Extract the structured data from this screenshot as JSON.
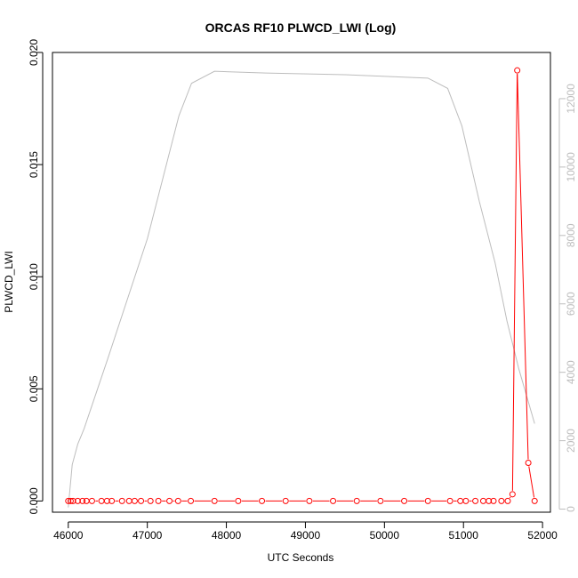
{
  "chart_data": {
    "type": "line",
    "title": "ORCAS RF10 PLWCD_LWI (Log)",
    "xlabel": "UTC Seconds",
    "ylabel": "PLWCD_LWI",
    "y2label": "",
    "xlim": [
      45800,
      52100
    ],
    "ylim": [
      -0.0005,
      0.02
    ],
    "y2lim": [
      -90,
      13350
    ],
    "x_ticks": [
      {
        "value": 46000,
        "label": "46000"
      },
      {
        "value": 47000,
        "label": "47000"
      },
      {
        "value": 48000,
        "label": "48000"
      },
      {
        "value": 49000,
        "label": "49000"
      },
      {
        "value": 50000,
        "label": "50000"
      },
      {
        "value": 51000,
        "label": "51000"
      },
      {
        "value": 52000,
        "label": "52000"
      }
    ],
    "y_ticks": [
      {
        "value": 0.0,
        "label": "0.000"
      },
      {
        "value": 0.005,
        "label": "0.005"
      },
      {
        "value": 0.01,
        "label": "0.010"
      },
      {
        "value": 0.015,
        "label": "0.015"
      },
      {
        "value": 0.02,
        "label": "0.020"
      }
    ],
    "y2_ticks": [
      {
        "value": 0,
        "label": "0"
      },
      {
        "value": 2000,
        "label": "2000"
      },
      {
        "value": 4000,
        "label": "4000"
      },
      {
        "value": 6000,
        "label": "6000"
      },
      {
        "value": 8000,
        "label": "8000"
      },
      {
        "value": 10000,
        "label": "10000"
      },
      {
        "value": 12000,
        "label": "12000"
      }
    ],
    "series": [
      {
        "axis": "left",
        "style": "line+circles",
        "color": "#ff0000",
        "x": [
          46000,
          46030,
          46060,
          46120,
          46180,
          46230,
          46300,
          46420,
          46490,
          46550,
          46680,
          46770,
          46840,
          46920,
          47040,
          47140,
          47280,
          47390,
          47550,
          47850,
          48150,
          48450,
          48750,
          49050,
          49350,
          49650,
          49950,
          50250,
          50550,
          50830,
          50960,
          51030,
          51150,
          51250,
          51320,
          51380,
          51480,
          51560,
          51620,
          51680,
          51820,
          51900
        ],
        "y": [
          0,
          0,
          0,
          0,
          0,
          0,
          0,
          0,
          0,
          0,
          0,
          0,
          0,
          0,
          0,
          0,
          0,
          0,
          0,
          0,
          0,
          0,
          0,
          0,
          0,
          0,
          0,
          0,
          0,
          0,
          0,
          0,
          0,
          0,
          0,
          0,
          0,
          0,
          0.0003,
          0.0192,
          0.0017,
          0.0
        ]
      },
      {
        "axis": "right",
        "style": "line",
        "color": "#bdbdbd",
        "x": [
          46000,
          46050,
          46120,
          46200,
          46500,
          47000,
          47400,
          47560,
          47850,
          48500,
          49500,
          50550,
          50800,
          50980,
          51200,
          51400,
          51550,
          51700,
          51900
        ],
        "y": [
          50,
          1300,
          1900,
          2350,
          4400,
          7900,
          11500,
          12450,
          12800,
          12750,
          12700,
          12600,
          12300,
          11200,
          9000,
          7200,
          5500,
          4100,
          2500
        ]
      }
    ]
  }
}
